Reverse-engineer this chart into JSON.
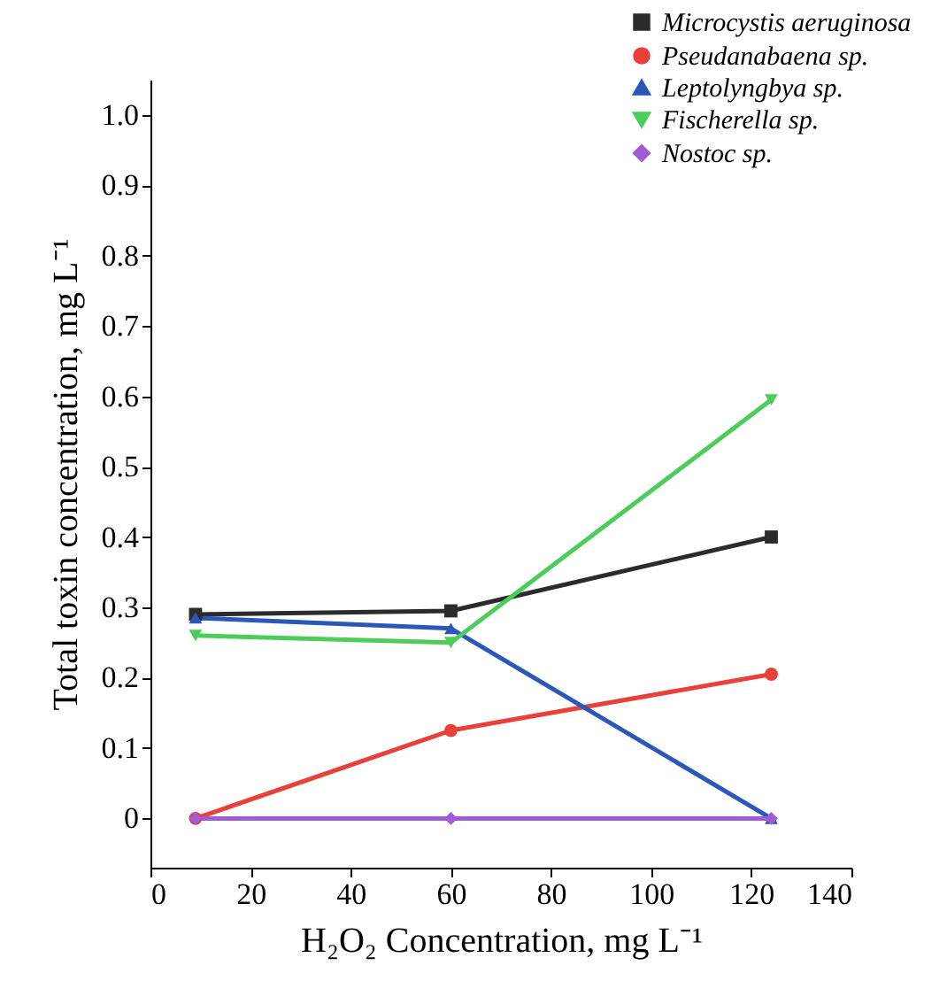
{
  "chart_data": {
    "type": "line",
    "xlabel": "H₂O₂ Concentration, mg L⁻¹",
    "ylabel": "Total toxin concentration, mg L⁻¹",
    "x": [
      9,
      60,
      124
    ],
    "series": [
      {
        "name": "Microcystis aeruginosa",
        "color": "#2b2b2b",
        "marker": "square",
        "values": [
          0.29,
          0.295,
          0.4
        ]
      },
      {
        "name": "Pseudanabaena sp.",
        "color": "#e8413a",
        "marker": "circle",
        "values": [
          0,
          0.125,
          0.205
        ]
      },
      {
        "name": "Leptolyngbya sp.",
        "color": "#2b58b8",
        "marker": "triangle",
        "values": [
          0.285,
          0.27,
          0
        ]
      },
      {
        "name": "Fischerella sp.",
        "color": "#4ccc5a",
        "marker": "triangle-down",
        "values": [
          0.26,
          0.25,
          0.595
        ]
      },
      {
        "name": "Nostoc sp.",
        "color": "#a05bd6",
        "marker": "diamond",
        "values": [
          0,
          0,
          0
        ]
      }
    ],
    "xlim": [
      0,
      140
    ],
    "xticks": [
      0,
      20,
      40,
      60,
      80,
      100,
      120,
      140
    ],
    "ylim": [
      -0.07,
      1.05
    ],
    "yticks": [
      0,
      0.1,
      0.2,
      0.3,
      0.4,
      0.5,
      0.6,
      0.7,
      0.8,
      0.9,
      {
        "value": 1,
        "label": "1.0"
      }
    ],
    "grid": false,
    "legend": "top right",
    "line_style": "solid"
  }
}
